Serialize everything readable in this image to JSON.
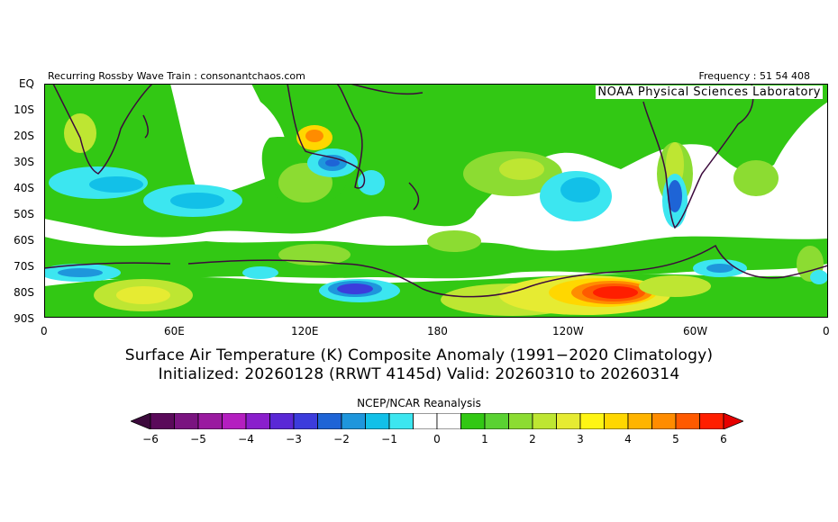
{
  "header": {
    "left": "Recurring Rossby Wave Train : consonantchaos.com",
    "right": "Frequency : 51 54 408",
    "inset": "NOAA Physical Sciences Laboratory"
  },
  "axes": {
    "y_labels": [
      "EQ",
      "10S",
      "20S",
      "30S",
      "40S",
      "50S",
      "60S",
      "70S",
      "80S",
      "90S"
    ],
    "x_labels": [
      "0",
      "60E",
      "120E",
      "180",
      "120W",
      "60W",
      "0"
    ]
  },
  "title": {
    "line1": "Surface Air Temperature (K) Composite Anomaly (1991−2020 Climatology)",
    "line2": "Initialized: 20260128 (RRWT 4145d) Valid: 20260310 to 20260314"
  },
  "colorbar": {
    "label": "NCEP/NCAR Reanalysis",
    "ticks": [
      "−6",
      "−5",
      "−4",
      "−3",
      "−2",
      "−1",
      "0",
      "1",
      "2",
      "3",
      "4",
      "5",
      "6"
    ],
    "colors": [
      "#5a0a5a",
      "#7a1480",
      "#9a1aa0",
      "#b41ec0",
      "#8a1ecc",
      "#5a28d6",
      "#3c3cdc",
      "#1e64d6",
      "#1e96dc",
      "#12c0e8",
      "#3ce6f0",
      "#ffffff",
      "#ffffff",
      "#32c814",
      "#5ad232",
      "#8cdc32",
      "#bee632",
      "#e6eb32",
      "#fff514",
      "#ffd700",
      "#ffb400",
      "#ff8c00",
      "#ff5a00",
      "#ff1e00"
    ],
    "under_color": "#3c0a3c",
    "over_color": "#e60000"
  }
}
